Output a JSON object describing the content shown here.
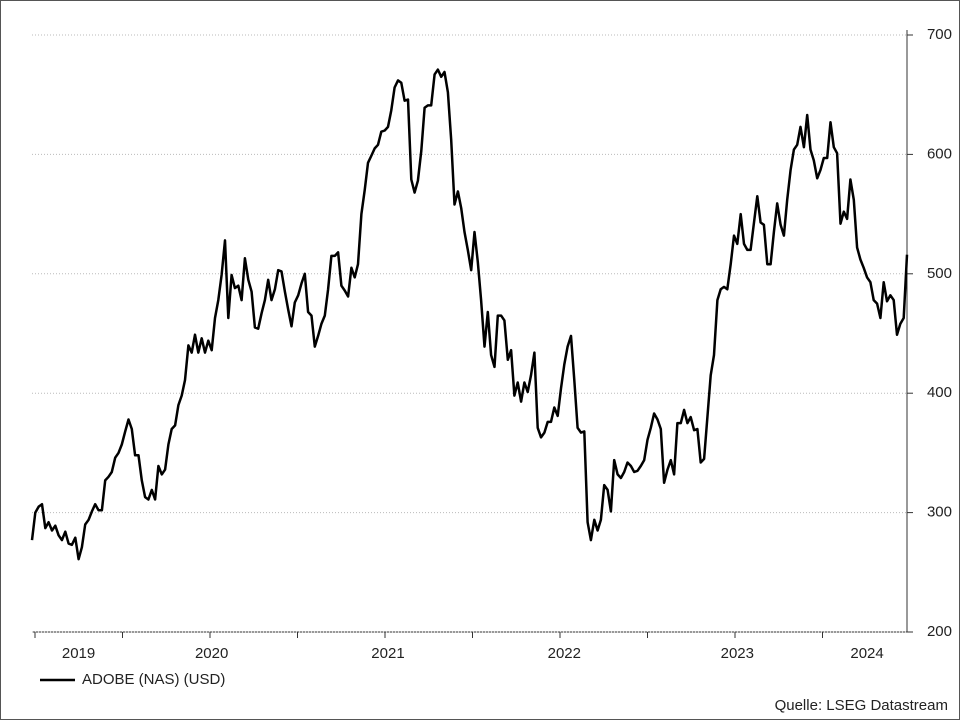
{
  "chart_data": {
    "type": "line",
    "source": "Quelle: LSEG Datastream",
    "categories": [
      null,
      null,
      null,
      null,
      null,
      null,
      null,
      null,
      null,
      null,
      null,
      null,
      null,
      null,
      "2019",
      null,
      null,
      null,
      null,
      null,
      null,
      null,
      null,
      null,
      null,
      null,
      null,
      null,
      null,
      null,
      null,
      null,
      null,
      null,
      null,
      null,
      null,
      null,
      null,
      null,
      null,
      null,
      null,
      null,
      null,
      null,
      null,
      null,
      null,
      null,
      null,
      null,
      null,
      null,
      "2020",
      null,
      null,
      null,
      null,
      null,
      null,
      null,
      null,
      null,
      null,
      null,
      null,
      null,
      null,
      null,
      null,
      null,
      null,
      null,
      null,
      null,
      null,
      null,
      null,
      null,
      null,
      null,
      null,
      null,
      null,
      null,
      null,
      null,
      null,
      null,
      null,
      null,
      null,
      null,
      null,
      null,
      null,
      null,
      null,
      null,
      null,
      null,
      null,
      null,
      null,
      null,
      null,
      "2021",
      null,
      null,
      null,
      null,
      null,
      null,
      null,
      null,
      null,
      null,
      null,
      null,
      null,
      null,
      null,
      null,
      null,
      null,
      null,
      null,
      null,
      null,
      null,
      null,
      null,
      null,
      null,
      null,
      null,
      null,
      null,
      null,
      null,
      null,
      null,
      null,
      null,
      null,
      null,
      null,
      null,
      null,
      null,
      null,
      null,
      null,
      null,
      null,
      null,
      null,
      null,
      null,
      "2022",
      null,
      null,
      null,
      null,
      null,
      null,
      null,
      null,
      null,
      null,
      null,
      null,
      null,
      null,
      null,
      null,
      null,
      null,
      null,
      null,
      null,
      null,
      null,
      null,
      null,
      null,
      null,
      null,
      null,
      null,
      null,
      null,
      null,
      null,
      null,
      null,
      null,
      null,
      null,
      null,
      null,
      null,
      null,
      null,
      null,
      null,
      null,
      null,
      null,
      null,
      null,
      "2023",
      null,
      null,
      null,
      null,
      null,
      null,
      null,
      null,
      null,
      null,
      null,
      null,
      null,
      null,
      null,
      null,
      null,
      null,
      null,
      null,
      null,
      null,
      null,
      null,
      null,
      null,
      null,
      null,
      null,
      null,
      null,
      null,
      null,
      null,
      null,
      null,
      null,
      null,
      "2024",
      null,
      null,
      null,
      null,
      null,
      null,
      null,
      null,
      null,
      null,
      null,
      null
    ],
    "series": [
      {
        "name": "ADOBE (NAS) (USD)",
        "color": "#000000",
        "values": [
          277,
          300,
          305,
          307,
          287,
          292,
          285,
          289,
          281,
          277,
          284,
          274,
          273,
          279,
          261,
          271,
          290,
          294,
          301,
          307,
          302,
          302,
          327,
          330,
          334,
          346,
          350,
          357,
          368,
          378,
          370,
          348,
          348,
          327,
          313,
          311,
          319,
          311,
          339,
          332,
          336,
          357,
          370,
          373,
          390,
          398,
          411,
          440,
          434,
          449,
          434,
          446,
          434,
          444,
          436,
          463,
          478,
          499,
          528,
          463,
          499,
          488,
          490,
          478,
          513,
          495,
          485,
          455,
          454,
          467,
          478,
          495,
          478,
          487,
          503,
          502,
          485,
          470,
          456,
          476,
          482,
          492,
          500,
          468,
          465,
          439,
          448,
          458,
          465,
          487,
          515,
          515,
          518,
          490,
          486,
          481,
          505,
          497,
          508,
          550,
          570,
          593,
          599,
          605,
          608,
          619,
          620,
          623,
          637,
          656,
          662,
          660,
          645,
          646,
          579,
          568,
          578,
          603,
          639,
          641,
          641,
          667,
          671,
          665,
          669,
          652,
          612,
          558,
          569,
          555,
          535,
          520,
          503,
          535,
          510,
          478,
          439,
          468,
          432,
          422,
          465,
          465,
          461,
          428,
          436,
          398,
          409,
          393,
          409,
          401,
          415,
          434,
          371,
          363,
          367,
          376,
          376,
          388,
          381,
          404,
          424,
          439,
          448,
          411,
          371,
          367,
          368,
          292,
          277,
          294,
          285,
          294,
          323,
          319,
          301,
          344,
          332,
          329,
          334,
          342,
          339,
          334,
          335,
          339,
          344,
          361,
          371,
          383,
          378,
          370,
          325,
          336,
          344,
          332,
          375,
          375,
          386,
          375,
          380,
          369,
          370,
          342,
          345,
          380,
          415,
          432,
          478,
          487,
          489,
          487,
          508,
          532,
          525,
          550,
          525,
          520,
          520,
          543,
          565,
          543,
          541,
          508,
          508,
          535,
          559,
          541,
          532,
          562,
          587,
          604,
          608,
          623,
          606,
          633,
          604,
          595,
          580,
          587,
          597,
          597,
          627,
          606,
          601,
          542,
          552,
          546,
          579,
          562,
          522,
          512,
          505,
          497,
          493,
          478,
          475,
          463,
          493,
          477,
          482,
          478,
          449,
          458,
          463,
          516
        ]
      }
    ],
    "ylim": [
      200,
      700
    ],
    "yticks": [
      200,
      300,
      400,
      500,
      600,
      700
    ],
    "grid": true,
    "y_axis_side": "right"
  }
}
